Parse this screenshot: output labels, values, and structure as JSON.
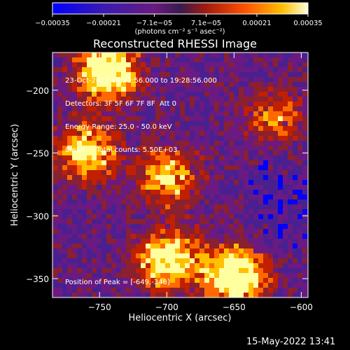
{
  "chart_data": {
    "type": "heatmap",
    "title": "Reconstructed RHESSI Image",
    "xlabel": "Heliocentric X (arcsec)",
    "ylabel": "Heliocentric Y (arcsec)",
    "xlim": [
      -785,
      -595
    ],
    "ylim": [
      -365,
      -170
    ],
    "x_ticks": [
      -750,
      -700,
      -650,
      -600
    ],
    "y_ticks": [
      -200,
      -250,
      -300,
      -350
    ],
    "x_tick_labels": [
      "−750",
      "−700",
      "−650",
      "−600"
    ],
    "y_tick_labels": [
      "−200",
      "−250",
      "−300",
      "−350"
    ],
    "colorbar": {
      "min": -0.00035,
      "max": 0.00035,
      "ticks": [
        -0.00035,
        -0.00021,
        -7.1e-05,
        7.1e-05,
        0.00021,
        0.00035
      ],
      "tick_labels": [
        "−0.00035",
        "−0.00021",
        "−7.1e−05",
        "7.1e−05",
        "0.00021",
        "0.00035"
      ],
      "unit_label": "(photons cm⁻² s⁻¹ asec⁻²)"
    },
    "info_lines": [
      "23-Oct-2012 19:22:56.000 to 19:28:56.000",
      "Detectors: 3F 5F 6F 7F 8F  Att 0",
      "Energy Range: 25.0 - 50.0 keV",
      "Clean     Total counts: 5.50E+03"
    ],
    "peak_label": "Position of Peak = [-649,-348]",
    "peak": {
      "x": -649,
      "y": -348
    },
    "bright_regions": [
      {
        "x": -745,
        "y": -185,
        "level": 0.9
      },
      {
        "x": -760,
        "y": -250,
        "level": 0.7
      },
      {
        "x": -700,
        "y": -270,
        "level": 0.6
      },
      {
        "x": -700,
        "y": -335,
        "level": 0.85
      },
      {
        "x": -650,
        "y": -348,
        "level": 1.0
      },
      {
        "x": -620,
        "y": -225,
        "level": 0.45
      }
    ],
    "colormap": [
      "#0000ff",
      "#4a2090",
      "#6a1a80",
      "#8a2030",
      "#c02000",
      "#ff6a00",
      "#ffc000",
      "#ffffa0"
    ]
  },
  "footer": {
    "timestamp": "15-May-2022 13:41"
  }
}
